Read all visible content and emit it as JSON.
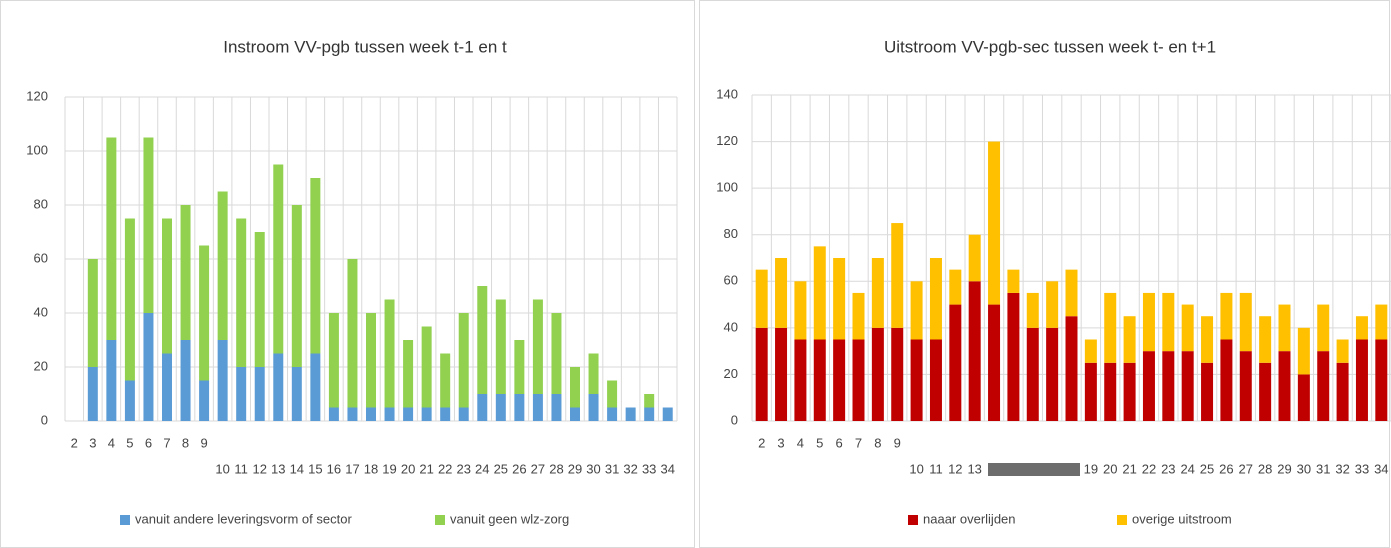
{
  "chart_data": [
    {
      "type": "stacked_bar",
      "title": "Instroom VV-pgb tussen week t-1 en t",
      "categories": [
        "2",
        "3",
        "4",
        "5",
        "6",
        "7",
        "8",
        "9",
        "10",
        "11",
        "12",
        "13",
        "14",
        "15",
        "16",
        "17",
        "18",
        "19",
        "20",
        "21",
        "22",
        "23",
        "24",
        "25",
        "26",
        "27",
        "28",
        "29",
        "30",
        "31",
        "32",
        "33",
        "34"
      ],
      "series": [
        {
          "name": "vanuit andere leveringsvorm of sector",
          "color": "#5b9bd5",
          "values": [
            0,
            20,
            30,
            15,
            40,
            25,
            30,
            15,
            30,
            20,
            20,
            25,
            20,
            25,
            5,
            5,
            5,
            5,
            5,
            5,
            5,
            5,
            10,
            10,
            10,
            10,
            10,
            5,
            10,
            5,
            5,
            5,
            5
          ]
        },
        {
          "name": "vanuit geen wlz-zorg",
          "color": "#92d050",
          "values": [
            0,
            40,
            75,
            60,
            65,
            50,
            50,
            50,
            55,
            55,
            50,
            70,
            60,
            65,
            35,
            55,
            35,
            40,
            25,
            30,
            20,
            35,
            40,
            35,
            20,
            35,
            30,
            15,
            15,
            10,
            0,
            5,
            0
          ]
        }
      ],
      "ylim": [
        0,
        120
      ],
      "yticks": [
        0,
        20,
        40,
        60,
        80,
        100,
        120
      ],
      "grid": true
    },
    {
      "type": "stacked_bar",
      "title": "Uitstroom VV-pgb-sec tussen week t- en t+1",
      "categories": [
        "2",
        "3",
        "4",
        "5",
        "6",
        "7",
        "8",
        "9",
        "10",
        "11",
        "12",
        "13",
        null,
        null,
        null,
        null,
        null,
        "19",
        "20",
        "21",
        "22",
        "23",
        "24",
        "25",
        "26",
        "27",
        "28",
        "29",
        "30",
        "31",
        "32",
        "33",
        "34"
      ],
      "series": [
        {
          "name": "naaar overlijden",
          "color": "#c00000",
          "values": [
            40,
            40,
            35,
            35,
            35,
            35,
            40,
            40,
            35,
            35,
            50,
            60,
            50,
            55,
            40,
            40,
            45,
            25,
            25,
            25,
            30,
            30,
            30,
            25,
            35,
            30,
            25,
            30,
            20,
            30,
            25,
            35,
            35
          ]
        },
        {
          "name": "overige uitstroom",
          "color": "#ffc000",
          "values": [
            25,
            30,
            25,
            40,
            35,
            20,
            30,
            45,
            25,
            35,
            15,
            20,
            70,
            10,
            15,
            20,
            20,
            10,
            30,
            20,
            25,
            25,
            20,
            20,
            20,
            25,
            20,
            20,
            20,
            20,
            10,
            10,
            15
          ]
        }
      ],
      "ylim": [
        0,
        140
      ],
      "yticks": [
        0,
        20,
        40,
        60,
        80,
        100,
        120,
        140
      ],
      "grid": true
    }
  ]
}
